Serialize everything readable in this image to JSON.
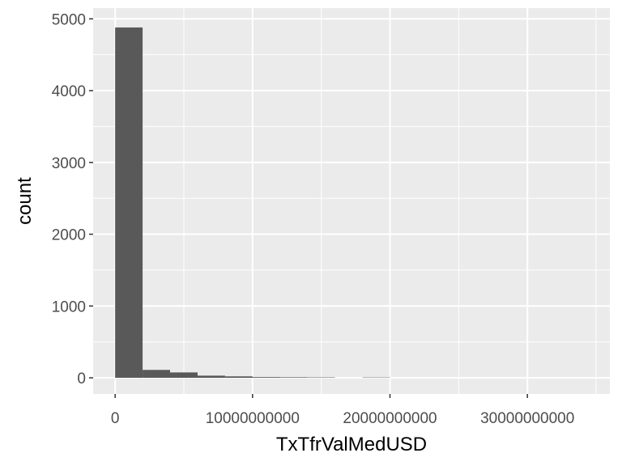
{
  "chart_data": {
    "type": "bar",
    "subtype": "histogram",
    "title": "",
    "xlabel": "TxTfrValMedUSD",
    "ylabel": "count",
    "xlim": [
      -1600000000,
      36000000000
    ],
    "ylim": [
      -225,
      5150
    ],
    "grid": true,
    "legend": "none",
    "bar_color": "#595959",
    "panel_background": "#ebebeb",
    "grid_color": "#ffffff",
    "x_ticks": [
      0,
      10000000000,
      20000000000,
      30000000000
    ],
    "x_tick_labels": [
      "0",
      "10000000000",
      "20000000000",
      "30000000000"
    ],
    "y_ticks": [
      0,
      1000,
      2000,
      3000,
      4000,
      5000
    ],
    "y_tick_labels": [
      "0",
      "1000",
      "2000",
      "3000",
      "4000",
      "5000"
    ],
    "bins": [
      {
        "x0": 0,
        "x1": 2000000000,
        "count": 4880
      },
      {
        "x0": 2000000000,
        "x1": 4000000000,
        "count": 110
      },
      {
        "x0": 4000000000,
        "x1": 6000000000,
        "count": 75
      },
      {
        "x0": 6000000000,
        "x1": 8000000000,
        "count": 30
      },
      {
        "x0": 8000000000,
        "x1": 10000000000,
        "count": 20
      },
      {
        "x0": 10000000000,
        "x1": 12000000000,
        "count": 10
      },
      {
        "x0": 12000000000,
        "x1": 14000000000,
        "count": 8
      },
      {
        "x0": 14000000000,
        "x1": 16000000000,
        "count": 6
      },
      {
        "x0": 16000000000,
        "x1": 18000000000,
        "count": 0
      },
      {
        "x0": 18000000000,
        "x1": 20000000000,
        "count": 5
      }
    ]
  }
}
